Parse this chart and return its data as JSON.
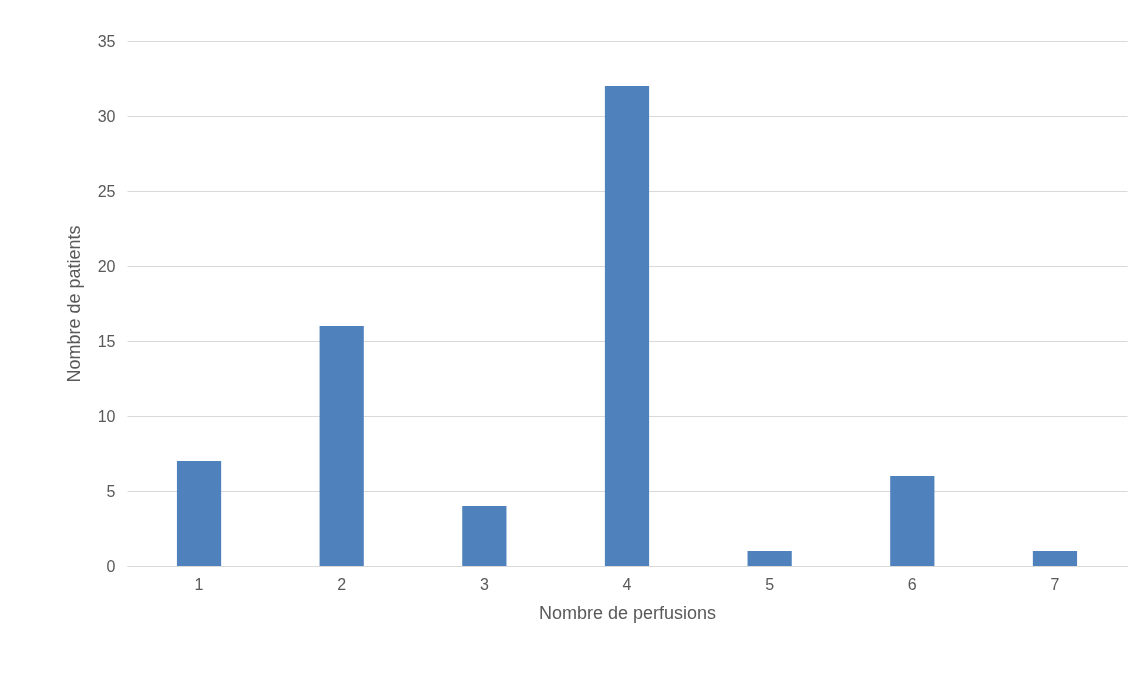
{
  "chart_data": {
    "type": "bar",
    "xlabel": "Nombre de perfusions",
    "ylabel": "Nombre de patients",
    "categories": [
      "1",
      "2",
      "3",
      "4",
      "5",
      "6",
      "7"
    ],
    "values": [
      7,
      16,
      4,
      32,
      1,
      6,
      1
    ],
    "color": "#4f81bd",
    "ylim": [
      0,
      35
    ],
    "yticks": [
      0,
      5,
      10,
      15,
      20,
      25,
      30,
      35
    ],
    "grid": "y"
  }
}
